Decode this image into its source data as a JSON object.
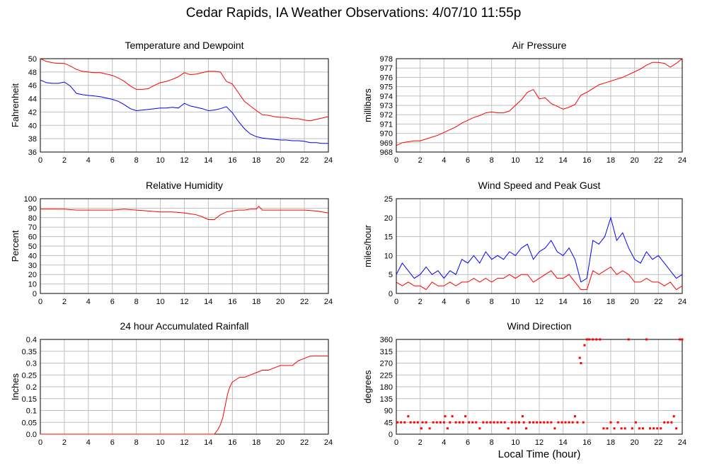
{
  "page": {
    "title": "Cedar Rapids, IA Weather Observations: 4/07/10 11:55p",
    "x_axis_label": "Local Time (hour)"
  },
  "colors": {
    "red": "#ff0000",
    "blue": "#0000ff",
    "grid": "#bfbfbf",
    "frame": "#000000"
  },
  "chart_data": [
    {
      "type": "line",
      "title": "Temperature and Dewpoint",
      "xlabel": "",
      "ylabel": "Fahrenheit",
      "xlim": [
        0,
        24
      ],
      "ylim": [
        36,
        50
      ],
      "xticks": [
        0,
        2,
        4,
        6,
        8,
        10,
        12,
        14,
        16,
        18,
        20,
        22,
        24
      ],
      "yticks": [
        36,
        38,
        40,
        42,
        44,
        46,
        48,
        50
      ],
      "grid": true,
      "series": [
        {
          "color": "#ff0000",
          "x": [
            0,
            0.5,
            1,
            1.5,
            2,
            2.5,
            3,
            3.5,
            4,
            4.5,
            5,
            5.5,
            6,
            6.5,
            7,
            7.5,
            8,
            8.5,
            9,
            9.5,
            10,
            10.5,
            11,
            11.5,
            12,
            12.5,
            13,
            13.5,
            14,
            14.5,
            15,
            15.5,
            16,
            16.5,
            17,
            17.5,
            18,
            18.5,
            19,
            19.5,
            20,
            20.5,
            21,
            21.5,
            22,
            22.5,
            23,
            23.5,
            24
          ],
          "y": [
            50,
            49.6,
            49.4,
            49.3,
            49.3,
            48.9,
            48.4,
            48.1,
            48,
            47.9,
            47.9,
            47.7,
            47.5,
            47.1,
            46.6,
            45.9,
            45.4,
            45.4,
            45.5,
            46.0,
            46.4,
            46.6,
            46.9,
            47.3,
            47.9,
            47.6,
            47.7,
            47.9,
            48.1,
            48.1,
            48.0,
            46.6,
            46.2,
            44.9,
            43.6,
            42.9,
            42.2,
            41.6,
            41.5,
            41.3,
            41.2,
            41.2,
            41.0,
            41.0,
            40.8,
            40.7,
            40.9,
            41.1,
            41.3
          ]
        },
        {
          "color": "#0000ff",
          "x": [
            0,
            0.5,
            1,
            1.5,
            2,
            2.5,
            3,
            3.5,
            4,
            4.5,
            5,
            5.5,
            6,
            6.5,
            7,
            7.5,
            8,
            8.5,
            9,
            9.5,
            10,
            10.5,
            11,
            11.5,
            12,
            12.5,
            13,
            13.5,
            14,
            14.5,
            15,
            15.5,
            16,
            16.5,
            17,
            17.5,
            18,
            18.5,
            19,
            19.5,
            20,
            20.5,
            21,
            21.5,
            22,
            22.5,
            23,
            23.5,
            24
          ],
          "y": [
            46.8,
            46.4,
            46.3,
            46.3,
            46.5,
            45.9,
            44.8,
            44.6,
            44.5,
            44.4,
            44.3,
            44.1,
            43.9,
            43.6,
            43.1,
            42.5,
            42.2,
            42.3,
            42.4,
            42.5,
            42.6,
            42.6,
            42.7,
            42.6,
            43.3,
            42.9,
            42.7,
            42.5,
            42.2,
            42.3,
            42.5,
            42.8,
            41.9,
            40.6,
            39.5,
            38.7,
            38.3,
            38.1,
            38.0,
            37.9,
            37.8,
            37.8,
            37.7,
            37.7,
            37.6,
            37.4,
            37.4,
            37.3,
            37.3
          ]
        }
      ]
    },
    {
      "type": "line",
      "title": "Air Pressure",
      "xlabel": "",
      "ylabel": "millibars",
      "xlim": [
        0,
        24
      ],
      "ylim": [
        968,
        978
      ],
      "xticks": [
        0,
        2,
        4,
        6,
        8,
        10,
        12,
        14,
        16,
        18,
        20,
        22,
        24
      ],
      "yticks": [
        968,
        969,
        970,
        971,
        972,
        973,
        974,
        975,
        976,
        977,
        978
      ],
      "grid": true,
      "series": [
        {
          "color": "#ff0000",
          "x": [
            0,
            0.5,
            1,
            1.5,
            2,
            2.5,
            3,
            3.5,
            4,
            4.5,
            5,
            5.5,
            6,
            6.5,
            7,
            7.5,
            8,
            8.5,
            9,
            9.5,
            10,
            10.5,
            11,
            11.5,
            12,
            12.5,
            13,
            13.5,
            14,
            14.5,
            15,
            15.5,
            16,
            16.5,
            17,
            17.5,
            18,
            18.5,
            19,
            19.5,
            20,
            20.5,
            21,
            21.5,
            22,
            22.5,
            23,
            23.5,
            24
          ],
          "y": [
            968.7,
            969.0,
            969.1,
            969.2,
            969.2,
            969.4,
            969.6,
            969.8,
            970.1,
            970.4,
            970.7,
            971.1,
            971.4,
            971.7,
            971.9,
            972.2,
            972.3,
            972.2,
            972.2,
            972.4,
            973.0,
            973.6,
            974.4,
            974.7,
            973.7,
            973.8,
            973.2,
            972.9,
            972.6,
            972.8,
            973.1,
            974.1,
            974.4,
            974.8,
            975.2,
            975.4,
            975.6,
            975.8,
            976.0,
            976.3,
            976.6,
            976.9,
            977.3,
            977.6,
            977.6,
            977.5,
            977.1,
            977.5,
            978.0
          ]
        }
      ]
    },
    {
      "type": "line",
      "title": "Relative Humidity",
      "xlabel": "",
      "ylabel": "Percent",
      "xlim": [
        0,
        24
      ],
      "ylim": [
        0,
        100
      ],
      "xticks": [
        0,
        2,
        4,
        6,
        8,
        10,
        12,
        14,
        16,
        18,
        20,
        22,
        24
      ],
      "yticks": [
        0,
        10,
        20,
        30,
        40,
        50,
        60,
        70,
        80,
        90,
        100
      ],
      "grid": true,
      "series": [
        {
          "color": "#ff0000",
          "x": [
            0,
            1,
            2,
            3,
            4,
            5,
            6,
            7,
            8,
            9,
            10,
            11,
            12,
            12.5,
            13,
            13.5,
            14,
            14.5,
            15,
            15.5,
            16,
            16.5,
            17,
            17.5,
            18,
            18.2,
            18.5,
            19,
            20,
            21,
            22,
            23,
            24
          ],
          "y": [
            89,
            89,
            89,
            88,
            88,
            88,
            88,
            89,
            88,
            87,
            86,
            86,
            85,
            84,
            83,
            81,
            78,
            78,
            83,
            86,
            87,
            88,
            88,
            89,
            89,
            92,
            88,
            88,
            88,
            88,
            88,
            87,
            85
          ]
        }
      ]
    },
    {
      "type": "line",
      "title": "Wind Speed and Peak Gust",
      "xlabel": "",
      "ylabel": "miles/hour",
      "xlim": [
        0,
        24
      ],
      "ylim": [
        0,
        25
      ],
      "xticks": [
        0,
        2,
        4,
        6,
        8,
        10,
        12,
        14,
        16,
        18,
        20,
        22,
        24
      ],
      "yticks": [
        0,
        5,
        10,
        15,
        20,
        25
      ],
      "grid": true,
      "series": [
        {
          "color": "#0000ff",
          "x": [
            0,
            0.5,
            1,
            1.5,
            2,
            2.5,
            3,
            3.5,
            4,
            4.5,
            5,
            5.5,
            6,
            6.5,
            7,
            7.5,
            8,
            8.5,
            9,
            9.5,
            10,
            10.5,
            11,
            11.5,
            12,
            12.5,
            13,
            13.5,
            14,
            14.5,
            15,
            15.5,
            16,
            16.5,
            17,
            17.5,
            18,
            18.5,
            19,
            19.5,
            20,
            20.5,
            21,
            21.5,
            22,
            22.5,
            23,
            23.5,
            24
          ],
          "y": [
            5,
            8,
            6,
            4,
            5,
            7,
            5,
            6,
            4,
            6,
            5,
            9,
            8,
            10,
            8,
            11,
            9,
            10,
            9,
            11,
            10,
            12,
            13,
            9,
            11,
            12,
            14,
            11,
            10,
            12,
            9,
            3,
            4,
            14,
            13,
            15,
            20,
            14,
            16,
            12,
            9,
            8,
            11,
            9,
            10,
            8,
            6,
            4,
            5
          ]
        },
        {
          "color": "#ff0000",
          "x": [
            0,
            0.5,
            1,
            1.5,
            2,
            2.5,
            3,
            3.5,
            4,
            4.5,
            5,
            5.5,
            6,
            6.5,
            7,
            7.5,
            8,
            8.5,
            9,
            9.5,
            10,
            10.5,
            11,
            11.5,
            12,
            12.5,
            13,
            13.5,
            14,
            14.5,
            15,
            15.5,
            16,
            16.5,
            17,
            17.5,
            18,
            18.5,
            19,
            19.5,
            20,
            20.5,
            21,
            21.5,
            22,
            22.5,
            23,
            23.5,
            24
          ],
          "y": [
            3,
            2,
            3,
            2,
            2,
            1,
            3,
            2,
            2,
            3,
            2,
            3,
            3,
            4,
            3,
            4,
            3,
            4,
            4,
            5,
            4,
            5,
            5,
            3,
            4,
            5,
            6,
            4,
            4,
            5,
            3,
            1,
            1,
            6,
            5,
            6,
            7,
            5,
            6,
            5,
            3,
            3,
            4,
            3,
            3,
            2,
            3,
            1,
            2
          ]
        }
      ]
    },
    {
      "type": "line",
      "title": "24 hour Accumulated Rainfall",
      "xlabel": "",
      "ylabel": "Inches",
      "xlim": [
        0,
        24
      ],
      "ylim": [
        0,
        0.4
      ],
      "xticks": [
        0,
        2,
        4,
        6,
        8,
        10,
        12,
        14,
        16,
        18,
        20,
        22,
        24
      ],
      "yticks": [
        0.0,
        0.05,
        0.1,
        0.15,
        0.2,
        0.25,
        0.3,
        0.35,
        0.4
      ],
      "ytick_labels": [
        "0.0",
        "0.05",
        "0.1",
        "0.15",
        "0.2",
        "0.25",
        "0.3",
        "0.35",
        "0.4"
      ],
      "grid": true,
      "series": [
        {
          "color": "#ff0000",
          "x": [
            0,
            14.5,
            14.8,
            15.0,
            15.2,
            15.4,
            15.6,
            15.8,
            16.0,
            16.3,
            16.6,
            17.0,
            17.5,
            18.0,
            18.5,
            19.0,
            19.5,
            20.0,
            20.5,
            21.0,
            21.5,
            22.0,
            22.5,
            23.0,
            23.5,
            24
          ],
          "y": [
            0,
            0,
            0.02,
            0.04,
            0.07,
            0.12,
            0.17,
            0.2,
            0.22,
            0.23,
            0.24,
            0.24,
            0.25,
            0.26,
            0.27,
            0.27,
            0.28,
            0.29,
            0.29,
            0.29,
            0.31,
            0.32,
            0.33,
            0.33,
            0.33,
            0.33
          ]
        }
      ]
    },
    {
      "type": "scatter",
      "title": "Wind Direction",
      "xlabel": "Local Time (hour)",
      "ylabel": "degrees",
      "xlim": [
        0,
        24
      ],
      "ylim": [
        0,
        360
      ],
      "xticks": [
        0,
        2,
        4,
        6,
        8,
        10,
        12,
        14,
        16,
        18,
        20,
        22,
        24
      ],
      "yticks": [
        0,
        45,
        90,
        135,
        180,
        225,
        270,
        315,
        360
      ],
      "grid": true,
      "series": [
        {
          "color": "#ff0000",
          "x": [
            0.1,
            0.4,
            0.7,
            1.0,
            1.2,
            1.5,
            1.8,
            2.1,
            2.2,
            2.5,
            2.8,
            3.1,
            3.4,
            3.7,
            4.0,
            4.1,
            4.3,
            4.5,
            4.7,
            5.0,
            5.3,
            5.6,
            5.8,
            6.1,
            6.4,
            6.7,
            7.0,
            7.3,
            7.6,
            7.9,
            8.2,
            8.5,
            8.8,
            9.1,
            9.4,
            9.7,
            10.0,
            10.3,
            10.6,
            10.7,
            10.9,
            11.2,
            11.5,
            11.8,
            12.1,
            12.4,
            12.7,
            13.0,
            13.3,
            13.6,
            13.9,
            14.2,
            14.5,
            14.8,
            15.0,
            15.2,
            15.4,
            15.5,
            15.7,
            15.8,
            16.0,
            16.2,
            16.5,
            16.8,
            17.1,
            17.4,
            17.7,
            18.0,
            18.3,
            18.6,
            18.9,
            19.2,
            19.5,
            19.8,
            20.1,
            20.4,
            20.7,
            21.0,
            21.3,
            21.6,
            21.9,
            22.2,
            22.5,
            22.8,
            23.1,
            23.3,
            23.5,
            23.8,
            24.0
          ],
          "y": [
            45,
            45,
            45,
            68,
            45,
            45,
            45,
            22,
            45,
            45,
            22,
            45,
            45,
            45,
            45,
            68,
            22,
            45,
            68,
            45,
            45,
            45,
            68,
            45,
            45,
            45,
            22,
            45,
            45,
            45,
            45,
            45,
            45,
            45,
            22,
            45,
            45,
            45,
            68,
            45,
            22,
            45,
            45,
            45,
            45,
            45,
            45,
            45,
            22,
            45,
            45,
            45,
            45,
            45,
            68,
            45,
            290,
            270,
            45,
            338,
            360,
            360,
            360,
            360,
            360,
            22,
            22,
            45,
            22,
            45,
            22,
            22,
            360,
            22,
            45,
            22,
            22,
            360,
            22,
            22,
            22,
            22,
            45,
            45,
            45,
            68,
            22,
            360,
            360
          ]
        }
      ]
    }
  ]
}
